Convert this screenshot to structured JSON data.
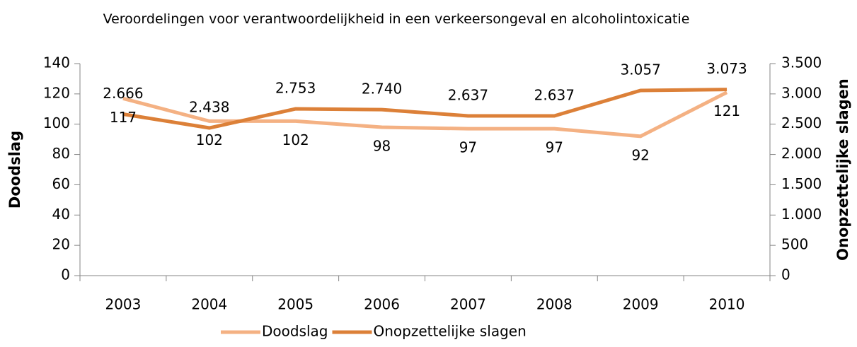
{
  "chart_data": {
    "type": "line",
    "title": "Veroordelingen voor verantwoordelijkheid in een verkeersongeval en alcoholintoxicatie",
    "y_label": "Doodslag",
    "y2_label": "Onopzettelijke slagen",
    "categories": [
      "2003",
      "2004",
      "2005",
      "2006",
      "2007",
      "2008",
      "2009",
      "2010"
    ],
    "series": [
      {
        "name": "Doodslag",
        "color": "#f4b183",
        "values": [
          117,
          102,
          102,
          98,
          97,
          97,
          92,
          121
        ]
      },
      {
        "name": "Onopzettelijke slagen",
        "color": "#dc8038",
        "axis": "y2",
        "values": [
          2666,
          2438,
          2753,
          2740,
          2637,
          2637,
          3057,
          3073
        ],
        "value_labels": [
          "2.666",
          "2.438",
          "2.753",
          "2.740",
          "2.637",
          "2.637",
          "3.057",
          "3.073"
        ]
      }
    ],
    "ylim": [
      0,
      140
    ],
    "yticks": [
      0,
      20,
      40,
      60,
      80,
      100,
      120,
      140
    ],
    "y2lim": [
      0,
      3500
    ],
    "y2ticks": [
      0,
      500,
      {
        "value": 1000,
        "label": "1.000"
      },
      {
        "value": 1500,
        "label": "1.500"
      },
      {
        "value": 2000,
        "label": "2.000"
      },
      {
        "value": 2500,
        "label": "2.500"
      },
      {
        "value": 3000,
        "label": "3.000"
      },
      {
        "value": 3500,
        "label": "3.500"
      }
    ],
    "grid": false,
    "legend": "bottom"
  }
}
